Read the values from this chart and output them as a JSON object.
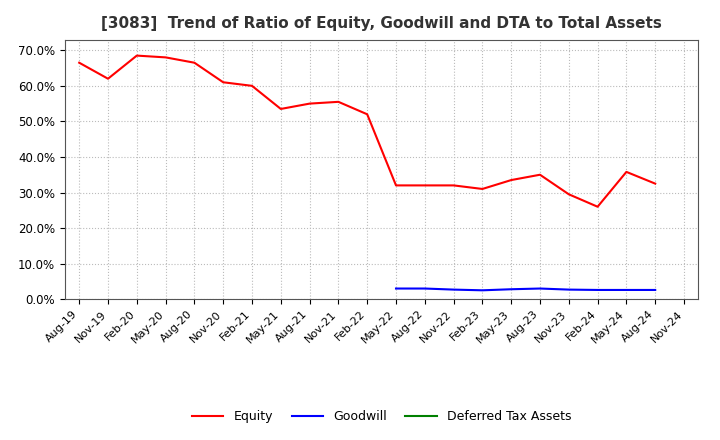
{
  "title": "[3083]  Trend of Ratio of Equity, Goodwill and DTA to Total Assets",
  "title_fontsize": 11,
  "ylim": [
    0.0,
    0.73
  ],
  "yticks": [
    0.0,
    0.1,
    0.2,
    0.3,
    0.4,
    0.5,
    0.6,
    0.7
  ],
  "ytick_labels": [
    "0.0%",
    "10.0%",
    "20.0%",
    "30.0%",
    "40.0%",
    "50.0%",
    "60.0%",
    "70.0%"
  ],
  "background_color": "#ffffff",
  "plot_bg_color": "#ffffff",
  "grid_color": "#bbbbbb",
  "dates": [
    "Aug-19",
    "Nov-19",
    "Feb-20",
    "May-20",
    "Aug-20",
    "Nov-20",
    "Feb-21",
    "May-21",
    "Aug-21",
    "Nov-21",
    "Feb-22",
    "May-22",
    "Aug-22",
    "Nov-22",
    "Feb-23",
    "May-23",
    "Aug-23",
    "Nov-23",
    "Feb-24",
    "May-24",
    "Aug-24",
    "Nov-24"
  ],
  "equity": [
    0.665,
    0.62,
    0.685,
    0.68,
    0.665,
    0.61,
    0.6,
    0.535,
    0.55,
    0.555,
    0.52,
    0.32,
    0.32,
    0.32,
    0.31,
    0.335,
    0.35,
    0.295,
    0.26,
    0.358,
    0.325,
    null
  ],
  "goodwill": [
    null,
    null,
    null,
    null,
    null,
    null,
    null,
    null,
    null,
    null,
    null,
    0.03,
    0.03,
    0.027,
    0.025,
    0.028,
    0.03,
    0.027,
    0.026,
    0.026,
    0.026,
    null
  ],
  "dta": [
    null,
    null,
    null,
    null,
    null,
    null,
    null,
    null,
    null,
    null,
    null,
    null,
    null,
    null,
    null,
    null,
    null,
    null,
    null,
    null,
    null,
    null
  ],
  "equity_color": "#ff0000",
  "goodwill_color": "#0000ff",
  "dta_color": "#008000",
  "legend_labels": [
    "Equity",
    "Goodwill",
    "Deferred Tax Assets"
  ]
}
